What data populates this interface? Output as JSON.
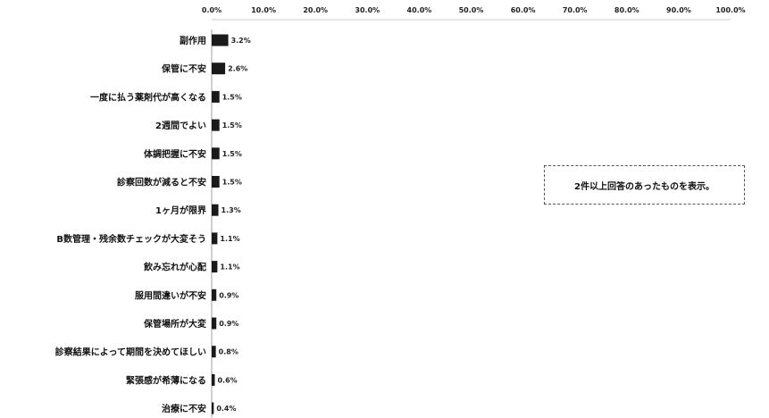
{
  "chart_data": {
    "type": "bar",
    "orientation": "horizontal",
    "categories": [
      "副作用",
      "保管に不安",
      "一度に払う薬剤代が高くなる",
      "2週間でよい",
      "体調把握に不安",
      "診察回数が減ると不安",
      "1ヶ月が限界",
      "B数管理・残余数チェックが大変そう",
      "飲み忘れが心配",
      "服用間違いが不安",
      "保管場所が大変",
      "診察結果によって期間を決めてほしい",
      "緊張感が希薄になる",
      "治療に不安"
    ],
    "values": [
      3.2,
      2.6,
      1.5,
      1.5,
      1.5,
      1.5,
      1.3,
      1.1,
      1.1,
      0.9,
      0.9,
      0.8,
      0.6,
      0.4
    ],
    "value_labels": [
      "3.2%",
      "2.6%",
      "1.5%",
      "1.5%",
      "1.5%",
      "1.5%",
      "1.3%",
      "1.1%",
      "1.1%",
      "0.9%",
      "0.9%",
      "0.8%",
      "0.6%",
      "0.4%"
    ],
    "x_ticks": [
      "0.0%",
      "10.0%",
      "20.0%",
      "30.0%",
      "40.0%",
      "50.0%",
      "60.0%",
      "70.0%",
      "80.0%",
      "90.0%",
      "100.0%"
    ],
    "xlim": [
      0,
      100
    ],
    "x_axis_position": "top",
    "grid": false,
    "bar_color": "#1a1a1a",
    "annotation": "2件以上回答のあったものを表示。"
  }
}
